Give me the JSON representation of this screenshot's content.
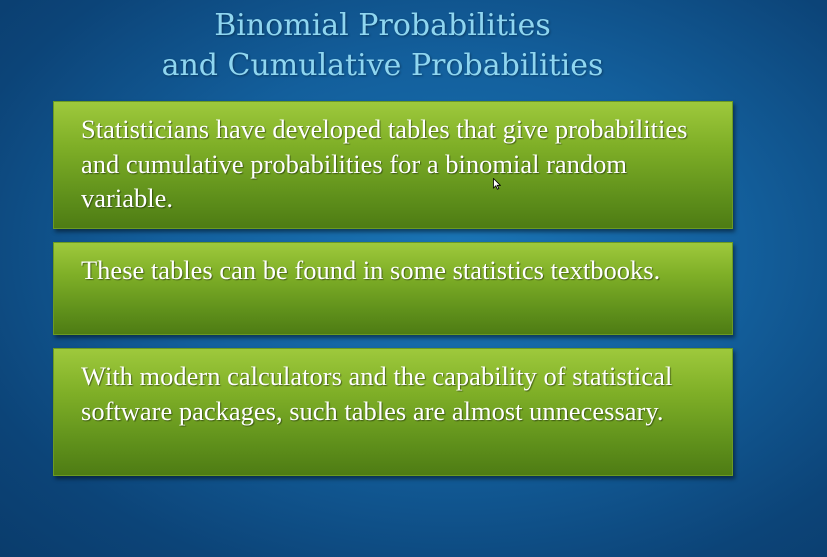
{
  "slide": {
    "title_line1": "Binomial Probabilities",
    "title_line2": "and Cumulative Probabilities",
    "bullets": [
      "Statisticians have developed tables that give probabilities and cumulative probabilities for a binomial random variable.",
      "These tables can be found in some statistics textbooks.",
      "With modern calculators and the capability of statistical software packages, such tables are almost unnecessary."
    ]
  },
  "colors": {
    "background": "#135f9c",
    "title": "#8fd6f0",
    "box": "#7faf27",
    "text": "#ffffff"
  },
  "icons": {
    "cursor": "mouse-pointer-icon"
  }
}
